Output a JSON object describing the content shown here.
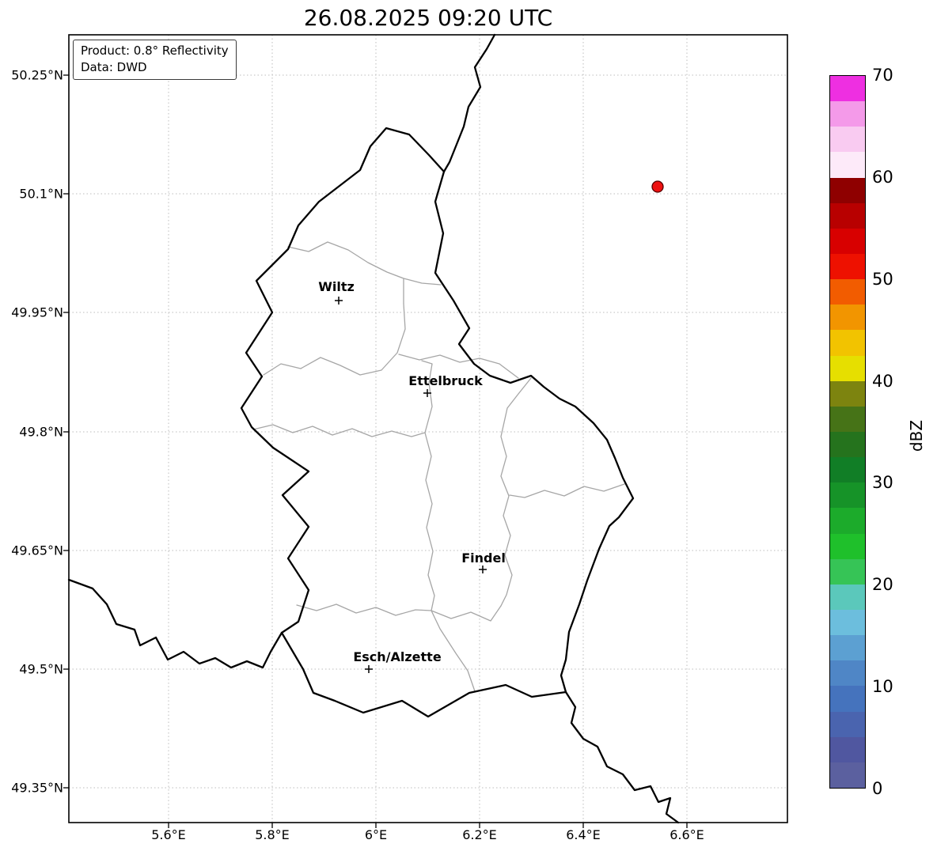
{
  "title": "26.08.2025 09:20 UTC",
  "info_box": {
    "product": "Product: 0.8° Reflectivity",
    "data_source": "Data: DWD"
  },
  "map": {
    "cities": [
      {
        "name": "Wiltz"
      },
      {
        "name": "Ettelbruck"
      },
      {
        "name": "Findel"
      },
      {
        "name": "Esch/Alzette"
      }
    ],
    "radar_dot_color": "#ee1111",
    "border_color": "#000000",
    "district_line_color": "#a6a6a6"
  },
  "axes": {
    "lat_ticks": [
      "50.25°N",
      "50.1°N",
      "49.95°N",
      "49.8°N",
      "49.65°N",
      "49.5°N",
      "49.35°N"
    ],
    "lon_ticks": [
      "5.6°E",
      "5.8°E",
      "6°E",
      "6.2°E",
      "6.4°E",
      "6.6°E"
    ]
  },
  "colorbar": {
    "unit_label": "dBZ",
    "tick_labels": [
      "70",
      "60",
      "50",
      "40",
      "30",
      "20",
      "10",
      "0"
    ],
    "range_dbz": [
      0,
      70
    ],
    "step_dbz": 2.5,
    "colors_bottom_to_top": [
      "#5b609f",
      "#5057a0",
      "#4a64af",
      "#4573bd",
      "#4f86c6",
      "#5ca0d2",
      "#6cbedd",
      "#5bc8bb",
      "#36c456",
      "#1fc02b",
      "#1cab2b",
      "#169328",
      "#117e26",
      "#25731d",
      "#467317",
      "#7d840f",
      "#e6df00",
      "#f2c300",
      "#f29500",
      "#f25c00",
      "#ee1100",
      "#d80000",
      "#b80000",
      "#8f0000",
      "#fdeaf9",
      "#f9cbf1",
      "#f49ae9",
      "#ee2fe1"
    ]
  }
}
